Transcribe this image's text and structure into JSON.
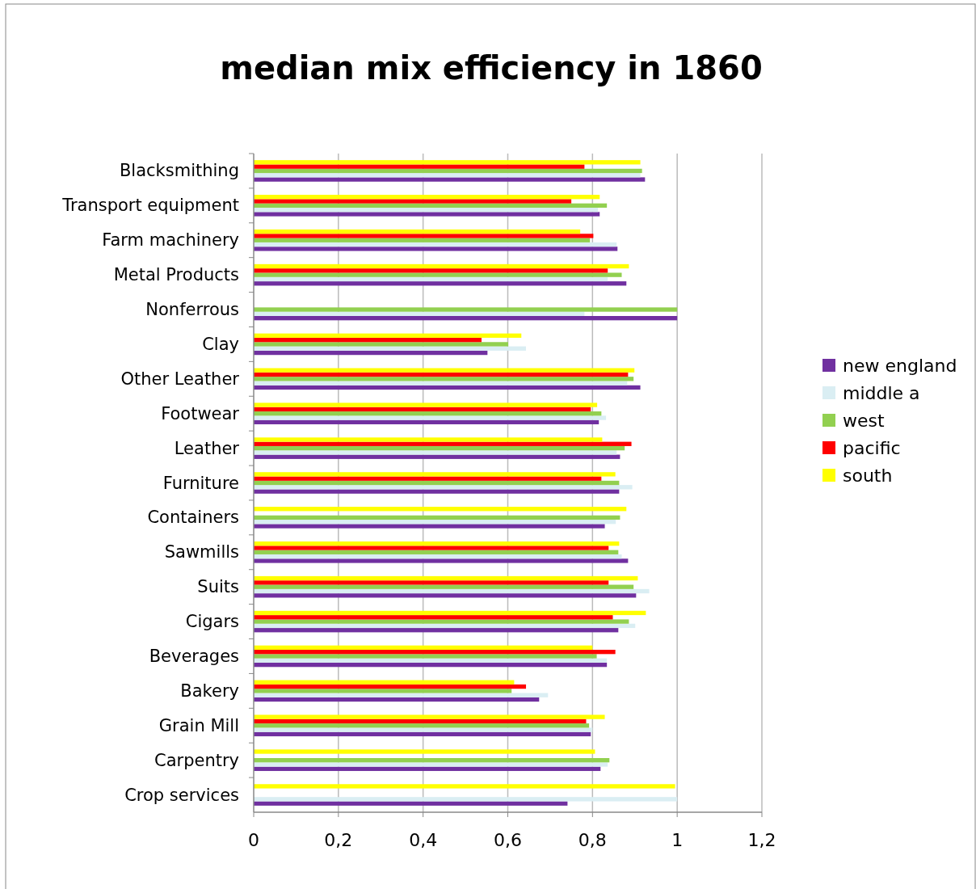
{
  "chart_data": {
    "type": "bar",
    "orientation": "horizontal",
    "title": "median mix efficiency in 1860",
    "categories": [
      "Blacksmithing",
      "Transport equipment",
      "Farm machinery",
      "Metal Products",
      "Nonferrous",
      "Clay",
      "Other Leather",
      "Footwear",
      "Leather",
      "Furniture",
      "Containers",
      "Sawmills",
      "Suits",
      "Cigars",
      "Beverages",
      "Bakery",
      "Grain Mill",
      "Carpentry",
      "Crop services"
    ],
    "series": [
      {
        "name": "new england",
        "color": "#7030a0",
        "values": [
          0.924,
          0.817,
          0.859,
          0.88,
          1.0,
          0.552,
          0.913,
          0.815,
          0.865,
          0.863,
          0.829,
          0.884,
          0.903,
          0.861,
          0.834,
          0.674,
          0.796,
          0.819,
          0.741
        ]
      },
      {
        "name": "middle a",
        "color": "#daeef3",
        "values": [
          0.913,
          0.813,
          0.857,
          0.836,
          0.781,
          0.643,
          0.882,
          0.832,
          0.857,
          0.894,
          0.855,
          0.869,
          0.934,
          0.901,
          0.834,
          0.695,
          0.8,
          0.836,
          1.0
        ]
      },
      {
        "name": "west",
        "color": "#92d050",
        "values": [
          0.917,
          0.834,
          0.794,
          0.869,
          1.0,
          0.601,
          0.897,
          0.821,
          0.876,
          0.863,
          0.865,
          0.861,
          0.897,
          0.886,
          0.81,
          0.609,
          0.792,
          0.84,
          null
        ]
      },
      {
        "name": "pacific",
        "color": "#ff0000",
        "values": [
          0.781,
          0.75,
          0.802,
          0.836,
          null,
          0.538,
          0.884,
          0.796,
          0.892,
          0.821,
          null,
          0.838,
          0.838,
          0.848,
          0.854,
          0.643,
          0.785,
          null,
          null
        ]
      },
      {
        "name": "south",
        "color": "#ffff00",
        "values": [
          0.913,
          0.817,
          0.771,
          0.886,
          null,
          0.632,
          0.899,
          0.811,
          0.823,
          0.854,
          0.88,
          0.863,
          0.907,
          0.926,
          0.8,
          0.615,
          0.829,
          0.806,
          0.995
        ]
      }
    ],
    "xlim": [
      0,
      1.2
    ],
    "xticks": [
      {
        "value": 0,
        "label": "0"
      },
      {
        "value": 0.2,
        "label": "0,2"
      },
      {
        "value": 0.4,
        "label": "0,4"
      },
      {
        "value": 0.6,
        "label": "0,6"
      },
      {
        "value": 0.8,
        "label": "0,8"
      },
      {
        "value": 1,
        "label": "1"
      },
      {
        "value": 1.2,
        "label": "1,2"
      }
    ],
    "grid": "x",
    "legend": "right"
  }
}
